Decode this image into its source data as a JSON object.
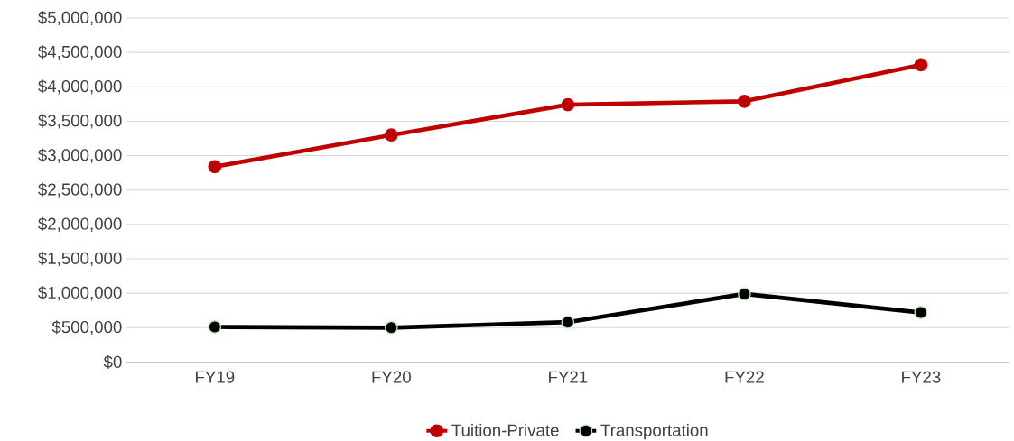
{
  "chart_data": {
    "type": "line",
    "categories": [
      "FY19",
      "FY20",
      "FY21",
      "FY22",
      "FY23"
    ],
    "series": [
      {
        "name": "Tuition-Private",
        "color": "#c00000",
        "values": [
          2840000,
          3300000,
          3740000,
          3790000,
          4320000
        ]
      },
      {
        "name": "Transportation",
        "color": "#000000",
        "values": [
          510000,
          500000,
          580000,
          990000,
          720000
        ]
      }
    ],
    "ylim": [
      0,
      5000000
    ],
    "yticks": [
      {
        "value": 0,
        "label": "$0"
      },
      {
        "value": 500000,
        "label": "$500,000"
      },
      {
        "value": 1000000,
        "label": "$1,000,000"
      },
      {
        "value": 1500000,
        "label": "$1,500,000"
      },
      {
        "value": 2000000,
        "label": "$2,000,000"
      },
      {
        "value": 2500000,
        "label": "$2,500,000"
      },
      {
        "value": 3000000,
        "label": "$3,000,000"
      },
      {
        "value": 3500000,
        "label": "$3,500,000"
      },
      {
        "value": 4000000,
        "label": "$4,000,000"
      },
      {
        "value": 4500000,
        "label": "$4,500,000"
      },
      {
        "value": 5000000,
        "label": "$5,000,000"
      }
    ],
    "grid": "y",
    "legend": "bottom",
    "marker": "circle",
    "line_style": "solid"
  }
}
